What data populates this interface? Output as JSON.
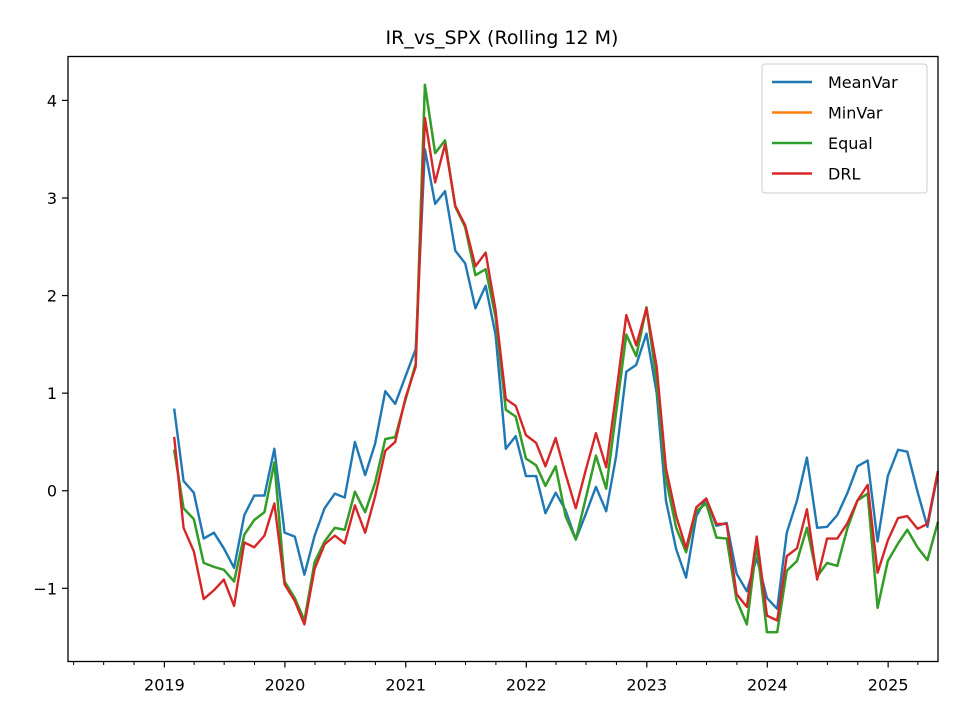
{
  "chart_data": {
    "type": "line",
    "title": "IR_vs_SPX (Rolling 12 M)",
    "xlabel": "",
    "ylabel": "",
    "x_range": [
      "2018-03-15",
      "2025-06-01"
    ],
    "ylim": [
      -1.75,
      4.45
    ],
    "x_ticks": [
      {
        "date": "2019-01-01",
        "label": "2019"
      },
      {
        "date": "2020-01-01",
        "label": "2020"
      },
      {
        "date": "2021-01-01",
        "label": "2021"
      },
      {
        "date": "2022-01-01",
        "label": "2022"
      },
      {
        "date": "2023-01-01",
        "label": "2023"
      },
      {
        "date": "2024-01-01",
        "label": "2024"
      },
      {
        "date": "2025-01-01",
        "label": "2025"
      }
    ],
    "y_ticks": [
      {
        "value": -1,
        "label": "−1"
      },
      {
        "value": 0,
        "label": "0"
      },
      {
        "value": 1,
        "label": "1"
      },
      {
        "value": 2,
        "label": "2"
      },
      {
        "value": 3,
        "label": "3"
      },
      {
        "value": 4,
        "label": "4"
      }
    ],
    "grid": false,
    "legend": "top-right",
    "x": [
      "2019-01-31",
      "2019-02-28",
      "2019-03-31",
      "2019-04-30",
      "2019-05-31",
      "2019-06-30",
      "2019-07-31",
      "2019-08-31",
      "2019-09-30",
      "2019-10-31",
      "2019-11-30",
      "2019-12-31",
      "2020-01-31",
      "2020-02-29",
      "2020-03-31",
      "2020-04-30",
      "2020-05-31",
      "2020-06-30",
      "2020-07-31",
      "2020-08-31",
      "2020-09-30",
      "2020-10-31",
      "2020-11-30",
      "2020-12-31",
      "2021-01-31",
      "2021-02-28",
      "2021-03-31",
      "2021-04-30",
      "2021-05-31",
      "2021-06-30",
      "2021-07-31",
      "2021-08-31",
      "2021-09-30",
      "2021-10-31",
      "2021-11-30",
      "2021-12-31",
      "2022-01-31",
      "2022-02-28",
      "2022-03-31",
      "2022-04-30",
      "2022-05-31",
      "2022-06-30",
      "2022-07-31",
      "2022-08-31",
      "2022-09-30",
      "2022-10-31",
      "2022-11-30",
      "2022-12-31",
      "2023-01-31",
      "2023-02-28",
      "2023-03-31",
      "2023-04-30",
      "2023-05-31",
      "2023-06-30",
      "2023-07-31",
      "2023-08-31",
      "2023-09-30",
      "2023-10-31",
      "2023-11-30",
      "2023-12-31",
      "2024-01-31",
      "2024-02-29",
      "2024-03-31",
      "2024-04-30",
      "2024-05-31",
      "2024-06-30",
      "2024-07-31",
      "2024-08-31",
      "2024-09-30",
      "2024-10-31",
      "2024-11-30",
      "2024-12-31",
      "2025-01-31",
      "2025-02-28",
      "2025-03-31",
      "2025-04-30",
      "2025-05-31"
    ],
    "series": [
      {
        "name": "MeanVar",
        "color": "#1f77b4",
        "values": [
          0.83,
          0.1,
          -0.02,
          -0.49,
          -0.43,
          -0.59,
          -0.79,
          -0.25,
          -0.05,
          -0.05,
          0.43,
          -0.43,
          -0.47,
          -0.86,
          -0.46,
          -0.18,
          -0.03,
          -0.07,
          0.5,
          0.16,
          0.48,
          1.02,
          0.89,
          1.17,
          1.45,
          3.5,
          2.94,
          3.07,
          2.46,
          2.33,
          1.87,
          2.1,
          1.6,
          0.43,
          0.56,
          0.15,
          0.15,
          -0.23,
          -0.02,
          -0.2,
          -0.5,
          -0.24,
          0.04,
          -0.21,
          0.35,
          1.22,
          1.29,
          1.61,
          1.0,
          -0.1,
          -0.6,
          -0.89,
          -0.26,
          -0.08,
          -0.36,
          -0.33,
          -0.85,
          -1.03,
          -0.69,
          -1.1,
          -1.21,
          -0.43,
          -0.1,
          0.34,
          -0.38,
          -0.37,
          -0.25,
          -0.02,
          0.25,
          0.31,
          -0.52,
          0.15,
          0.42,
          0.4,
          -0.01,
          -0.37,
          0.17
        ]
      },
      {
        "name": "MinVar",
        "color": "#ff7f0e",
        "values": [
          0.41,
          -0.18,
          -0.29,
          -0.74,
          -0.78,
          -0.81,
          -0.93,
          -0.45,
          -0.3,
          -0.22,
          0.29,
          -0.93,
          -1.1,
          -1.33,
          -0.73,
          -0.52,
          -0.38,
          -0.4,
          -0.01,
          -0.22,
          0.08,
          0.53,
          0.55,
          0.93,
          1.3,
          4.16,
          3.46,
          3.59,
          2.91,
          2.7,
          2.21,
          2.27,
          1.78,
          0.83,
          0.76,
          0.33,
          0.26,
          0.05,
          0.25,
          -0.26,
          -0.5,
          -0.08,
          0.36,
          0.02,
          0.8,
          1.6,
          1.38,
          1.88,
          1.12,
          0.12,
          -0.38,
          -0.63,
          -0.21,
          -0.13,
          -0.48,
          -0.49,
          -1.12,
          -1.37,
          -0.55,
          -1.45,
          -1.45,
          -0.82,
          -0.72,
          -0.38,
          -0.88,
          -0.74,
          -0.77,
          -0.38,
          -0.1,
          -0.03,
          -1.2,
          -0.72,
          -0.54,
          -0.4,
          -0.58,
          -0.71,
          -0.33
        ]
      },
      {
        "name": "Equal",
        "color": "#2ca02c",
        "values": [
          0.41,
          -0.18,
          -0.29,
          -0.74,
          -0.78,
          -0.81,
          -0.93,
          -0.45,
          -0.3,
          -0.22,
          0.29,
          -0.93,
          -1.1,
          -1.33,
          -0.73,
          -0.52,
          -0.38,
          -0.4,
          -0.01,
          -0.22,
          0.08,
          0.53,
          0.55,
          0.93,
          1.3,
          4.16,
          3.46,
          3.59,
          2.91,
          2.7,
          2.21,
          2.27,
          1.78,
          0.83,
          0.76,
          0.33,
          0.26,
          0.05,
          0.25,
          -0.26,
          -0.5,
          -0.08,
          0.36,
          0.02,
          0.8,
          1.6,
          1.38,
          1.88,
          1.12,
          0.12,
          -0.38,
          -0.63,
          -0.21,
          -0.13,
          -0.48,
          -0.49,
          -1.12,
          -1.37,
          -0.55,
          -1.45,
          -1.45,
          -0.82,
          -0.72,
          -0.38,
          -0.88,
          -0.74,
          -0.77,
          -0.38,
          -0.1,
          -0.03,
          -1.2,
          -0.72,
          -0.54,
          -0.4,
          -0.58,
          -0.71,
          -0.33
        ]
      },
      {
        "name": "DRL",
        "color": "#d62728",
        "values": [
          0.54,
          -0.38,
          -0.62,
          -1.11,
          -1.02,
          -0.91,
          -1.18,
          -0.53,
          -0.58,
          -0.46,
          -0.13,
          -0.96,
          -1.13,
          -1.37,
          -0.8,
          -0.55,
          -0.46,
          -0.54,
          -0.15,
          -0.43,
          -0.06,
          0.41,
          0.5,
          0.95,
          1.27,
          3.82,
          3.16,
          3.55,
          2.92,
          2.72,
          2.3,
          2.44,
          1.85,
          0.94,
          0.87,
          0.57,
          0.49,
          0.25,
          0.54,
          0.17,
          -0.18,
          0.21,
          0.59,
          0.24,
          0.99,
          1.8,
          1.49,
          1.87,
          1.27,
          0.23,
          -0.26,
          -0.59,
          -0.17,
          -0.08,
          -0.34,
          -0.34,
          -1.06,
          -1.19,
          -0.47,
          -1.28,
          -1.33,
          -0.67,
          -0.59,
          -0.19,
          -0.91,
          -0.49,
          -0.49,
          -0.33,
          -0.1,
          0.06,
          -0.84,
          -0.51,
          -0.28,
          -0.26,
          -0.39,
          -0.34,
          0.19
        ]
      }
    ]
  }
}
